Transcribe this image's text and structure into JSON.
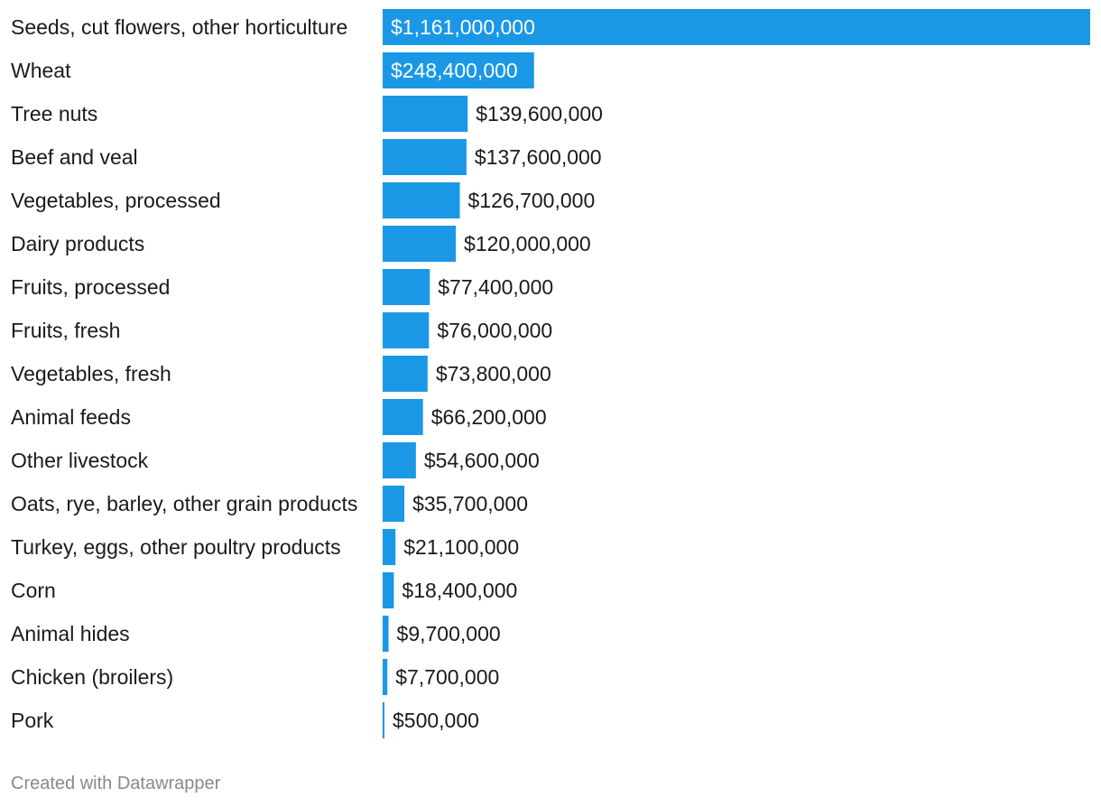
{
  "chart_data": {
    "type": "bar",
    "orientation": "horizontal",
    "title": "",
    "xlabel": "",
    "ylabel": "",
    "xlim": [
      0,
      1161000000
    ],
    "grid": false,
    "bar_color": "#1a98e6",
    "label_inside_color": "#ffffff",
    "label_outside_color": "#1a1a1a",
    "categories": [
      "Seeds, cut flowers, other horticulture",
      "Wheat",
      "Tree nuts",
      "Beef and veal",
      "Vegetables, processed",
      "Dairy products",
      "Fruits, processed",
      "Fruits, fresh",
      "Vegetables, fresh",
      "Animal feeds",
      "Other livestock",
      "Oats, rye, barley, other grain products",
      "Turkey, eggs, other poultry products",
      "Corn",
      "Animal hides",
      "Chicken (broilers)",
      "Pork"
    ],
    "values": [
      1161000000,
      248400000,
      139600000,
      137600000,
      126700000,
      120000000,
      77400000,
      76000000,
      73800000,
      66200000,
      54600000,
      35700000,
      21100000,
      18400000,
      9700000,
      7700000,
      500000
    ],
    "value_labels": [
      "$1,161,000,000",
      "$248,400,000",
      "$139,600,000",
      "$137,600,000",
      "$126,700,000",
      "$120,000,000",
      "$77,400,000",
      "$76,000,000",
      "$73,800,000",
      "$66,200,000",
      "$54,600,000",
      "$35,700,000",
      "$21,100,000",
      "$18,400,000",
      "$9,700,000",
      "$7,700,000",
      "$500,000"
    ]
  },
  "footer": {
    "credit": "Created with Datawrapper"
  }
}
